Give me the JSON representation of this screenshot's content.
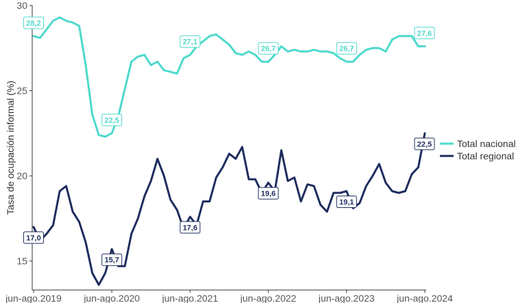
{
  "chart_data": {
    "type": "line",
    "title": "",
    "xlabel": "",
    "ylabel": "Tasa de ocupación informal (%)",
    "ylim": [
      13.3,
      30
    ],
    "yticks": [
      15,
      20,
      25,
      30
    ],
    "grid": false,
    "legend_position": "right",
    "x_tick_labels": [
      "jun-ago.2019",
      "jun-ago.2020",
      "jun-ago.2021",
      "jun-ago.2022",
      "jun-ago.2023",
      "jun-ago.2024"
    ],
    "x_tick_indices": [
      0,
      12,
      24,
      36,
      48,
      60
    ],
    "series": [
      {
        "name": "Total nacional",
        "color": "#4dd9cc",
        "values": [
          28.2,
          28.1,
          28.6,
          29.1,
          29.3,
          29.1,
          29.0,
          28.8,
          26.5,
          23.6,
          22.4,
          22.3,
          22.5,
          23.5,
          25.1,
          26.7,
          27.0,
          27.1,
          26.5,
          26.7,
          26.2,
          26.1,
          26.0,
          26.9,
          27.1,
          27.6,
          27.9,
          28.2,
          28.3,
          28.0,
          27.7,
          27.2,
          27.1,
          27.3,
          27.1,
          26.7,
          26.7,
          27.1,
          27.6,
          27.3,
          27.4,
          27.3,
          27.3,
          27.4,
          27.3,
          27.3,
          27.2,
          26.9,
          26.7,
          26.7,
          27.1,
          27.4,
          27.5,
          27.5,
          27.3,
          28.0,
          28.2,
          28.2,
          28.2,
          27.6,
          27.6
        ],
        "labels": [
          [
            0,
            "28,2"
          ],
          [
            12,
            "22,5"
          ],
          [
            24,
            "27,1"
          ],
          [
            36,
            "26,7"
          ],
          [
            48,
            "26,7"
          ],
          [
            60,
            "27,6"
          ]
        ]
      },
      {
        "name": "Total regional",
        "color": "#1e2d5e",
        "values": [
          17.0,
          16.2,
          16.6,
          17.1,
          19.1,
          19.4,
          17.9,
          17.3,
          16.1,
          14.3,
          13.6,
          14.3,
          15.7,
          14.7,
          14.7,
          16.6,
          17.5,
          18.8,
          19.7,
          21.0,
          20.0,
          18.6,
          18.0,
          16.9,
          17.6,
          17.1,
          18.5,
          18.5,
          19.9,
          20.5,
          21.3,
          21.0,
          21.7,
          19.8,
          19.8,
          19.0,
          19.6,
          19.1,
          21.5,
          19.7,
          19.9,
          18.5,
          19.5,
          19.4,
          18.3,
          17.9,
          19.0,
          19.0,
          19.1,
          18.1,
          18.4,
          19.4,
          20.0,
          20.7,
          19.6,
          19.1,
          19.0,
          19.1,
          20.1,
          20.5,
          22.5
        ],
        "labels": [
          [
            0,
            "17,0"
          ],
          [
            12,
            "15,7"
          ],
          [
            24,
            "17,6"
          ],
          [
            36,
            "19,6"
          ],
          [
            48,
            "19,1"
          ],
          [
            60,
            "22,5"
          ]
        ]
      }
    ]
  }
}
